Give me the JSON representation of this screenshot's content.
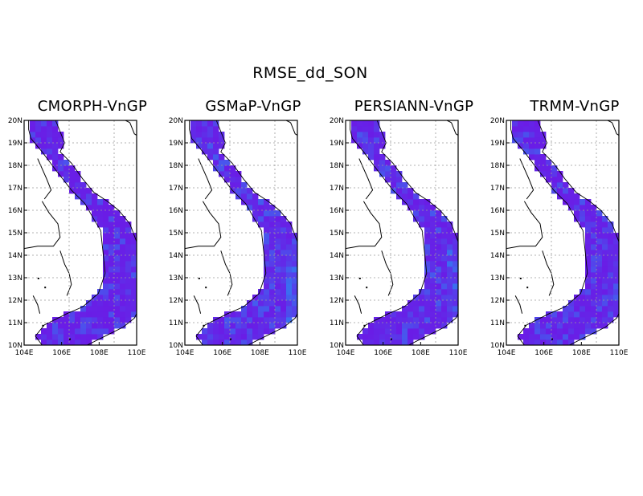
{
  "title": "RMSE_dd_SON",
  "colors": {
    "land_fill": "#7a1fe0",
    "shade_lo": "#6a1ce6",
    "shade_hi": "#3a6ef0"
  },
  "lat_ticks": [
    "10N",
    "11N",
    "12N",
    "13N",
    "14N",
    "15N",
    "16N",
    "17N",
    "18N",
    "19N",
    "20N"
  ],
  "lon_ticks": [
    "104E",
    "106E",
    "108E",
    "110E"
  ],
  "panels": [
    {
      "title": "CMORPH-VnGP"
    },
    {
      "title": "GSMaP-VnGP"
    },
    {
      "title": "PERSIANN-VnGP"
    },
    {
      "title": "TRMM-VnGP"
    }
  ]
}
